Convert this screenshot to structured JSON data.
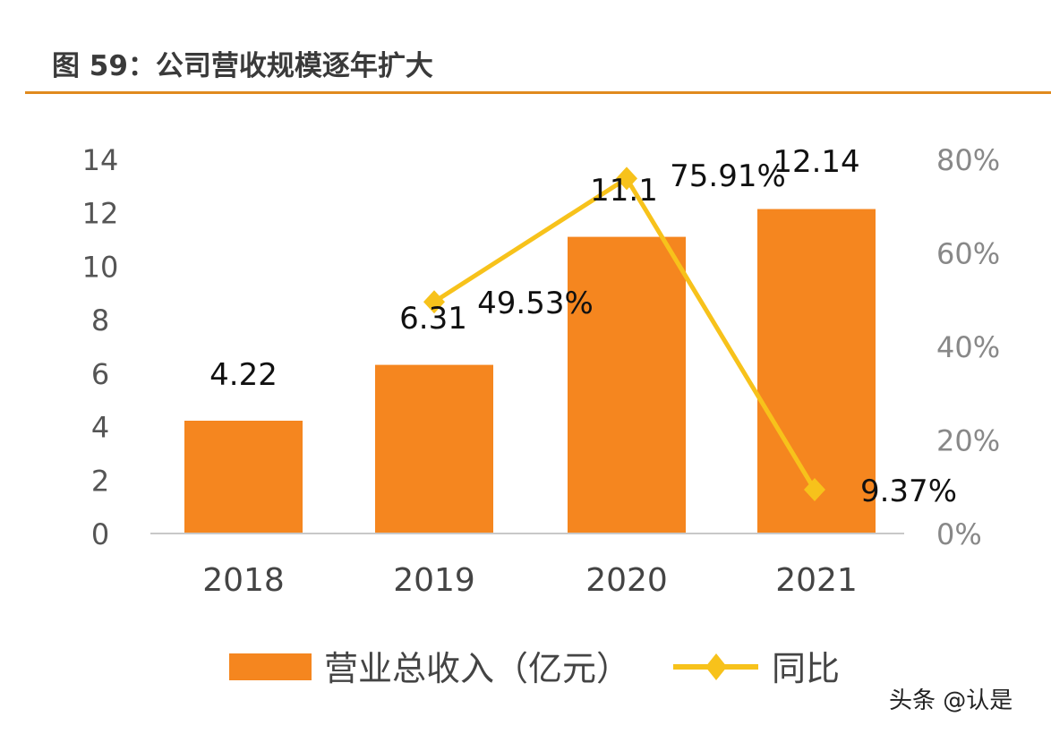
{
  "title": "图 59：公司营收规模逐年扩大",
  "watermark": "头条 @认是",
  "colors": {
    "bar": "#f5861f",
    "line": "#f7c21b",
    "rule": "#e08a1e"
  },
  "chart_data": {
    "type": "bar+line",
    "categories": [
      "2018",
      "2019",
      "2020",
      "2021"
    ],
    "series": [
      {
        "name": "营业总收入（亿元）",
        "type": "bar",
        "axis": "left",
        "values": [
          4.22,
          6.31,
          11.1,
          12.14
        ],
        "labels": [
          "4.22",
          "6.31",
          "11.1",
          "12.14"
        ]
      },
      {
        "name": "同比",
        "type": "line",
        "axis": "right",
        "values": [
          null,
          49.53,
          75.91,
          9.37
        ],
        "labels": [
          "",
          "49.53%",
          "75.91%",
          "9.37%"
        ]
      }
    ],
    "yleft": {
      "lim": [
        0,
        14
      ],
      "ticks": [
        "0",
        "2",
        "4",
        "6",
        "8",
        "10",
        "12",
        "14"
      ]
    },
    "yright": {
      "lim": [
        0,
        80
      ],
      "ticks": [
        "0%",
        "20%",
        "40%",
        "60%",
        "80%"
      ]
    },
    "grid": false,
    "legend": "bottom"
  }
}
